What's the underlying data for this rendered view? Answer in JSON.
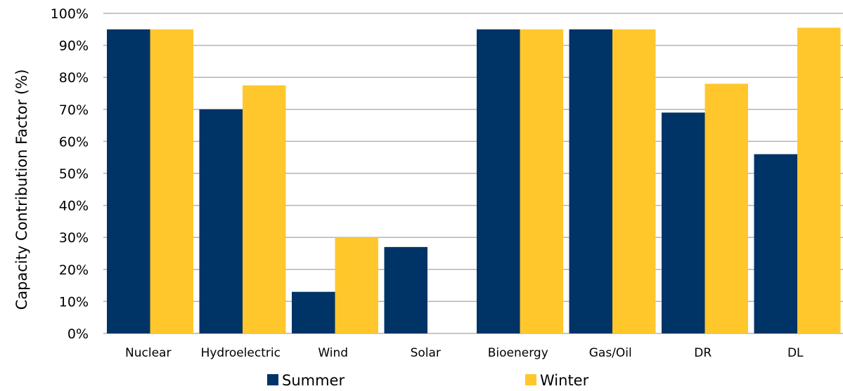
{
  "chart_data": {
    "type": "bar",
    "title": "",
    "xlabel": "",
    "ylabel": "Capacity Contribution Factor (%)",
    "ylim": [
      0,
      100
    ],
    "yticks": [
      "0%",
      "10%",
      "20%",
      "30%",
      "40%",
      "50%",
      "60%",
      "70%",
      "80%",
      "90%",
      "100%"
    ],
    "categories": [
      "Nuclear",
      "Hydroelectric",
      "Wind",
      "Solar",
      "Bioenergy",
      "Gas/Oil",
      "DR",
      "DL"
    ],
    "series": [
      {
        "name": "Summer",
        "color": "#003366",
        "values": [
          95,
          70,
          13,
          27,
          95,
          95,
          69,
          56
        ]
      },
      {
        "name": "Winter",
        "color": "#FFC72C",
        "values": [
          95,
          77.5,
          30,
          0,
          95,
          95,
          78,
          95.5
        ]
      }
    ],
    "grid": true,
    "gridline_color": "#B3B3B3",
    "legend_position": "bottom"
  }
}
